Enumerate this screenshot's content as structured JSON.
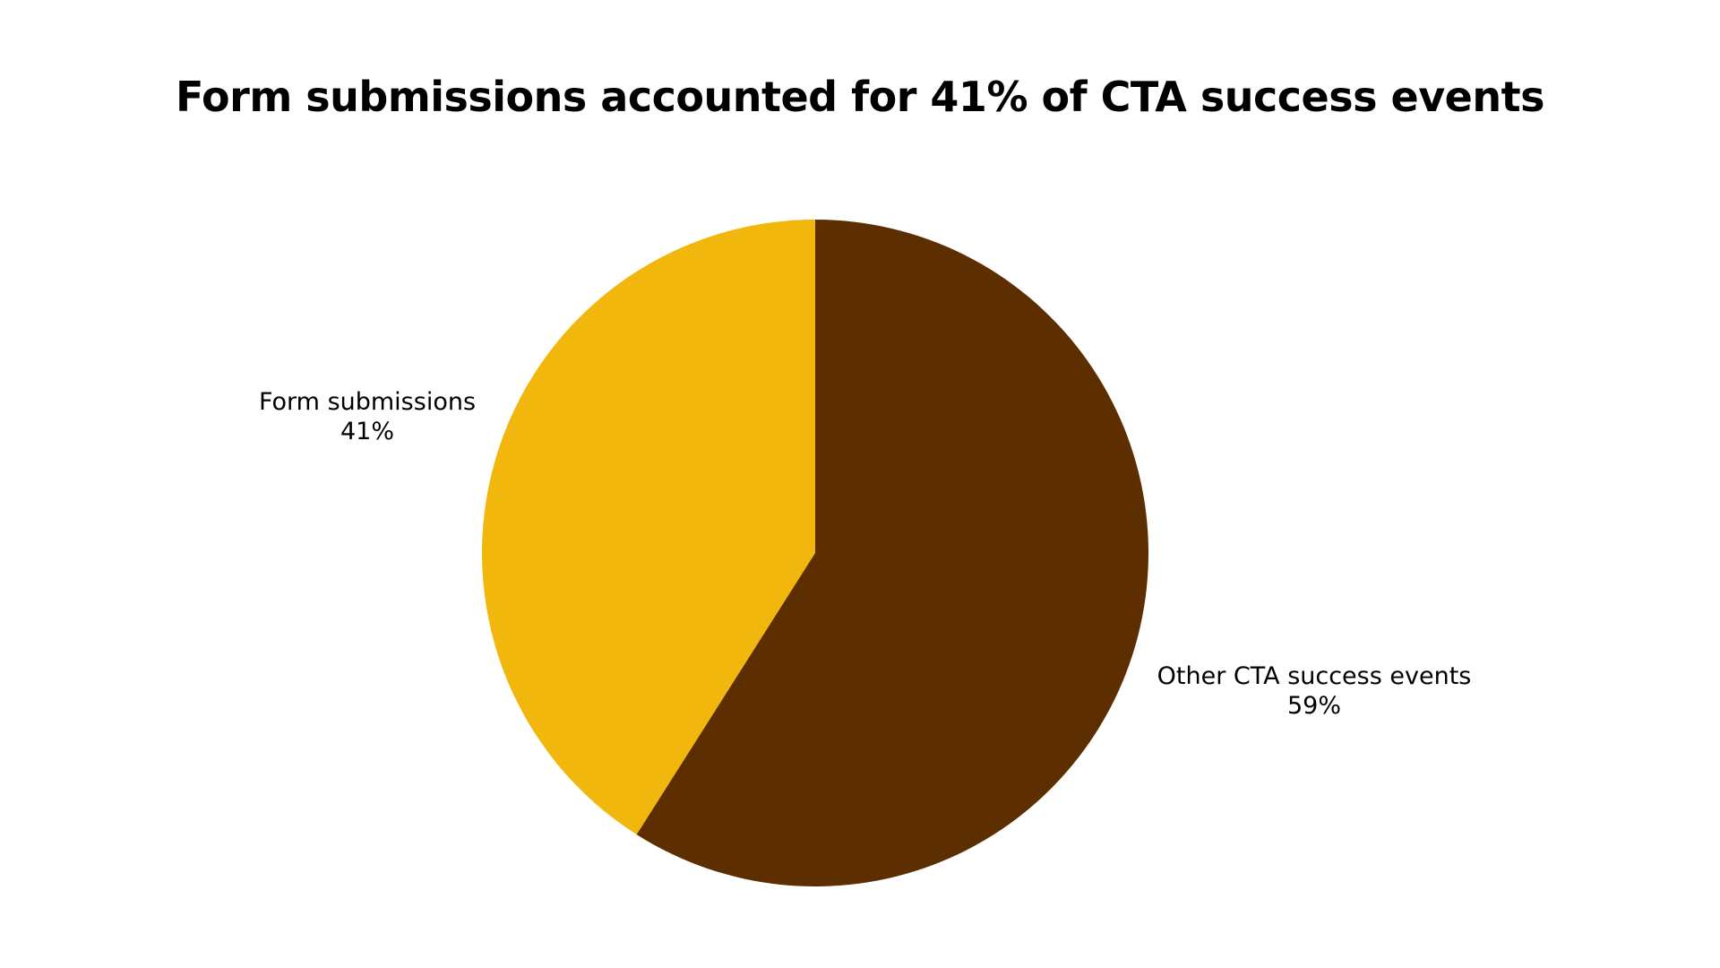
{
  "chart_data": {
    "type": "pie",
    "title": "Form submissions accounted for 41% of CTA success events",
    "slices": [
      {
        "label": "Form submissions",
        "value": 41,
        "value_label": "41%",
        "color": "#f2b70d"
      },
      {
        "label": "Other CTA success events",
        "value": 59,
        "value_label": "59%",
        "color": "#5c2e00"
      }
    ],
    "start_angle_deg": 0,
    "direction": "counterclockwise_first_slice",
    "legend": "none"
  }
}
